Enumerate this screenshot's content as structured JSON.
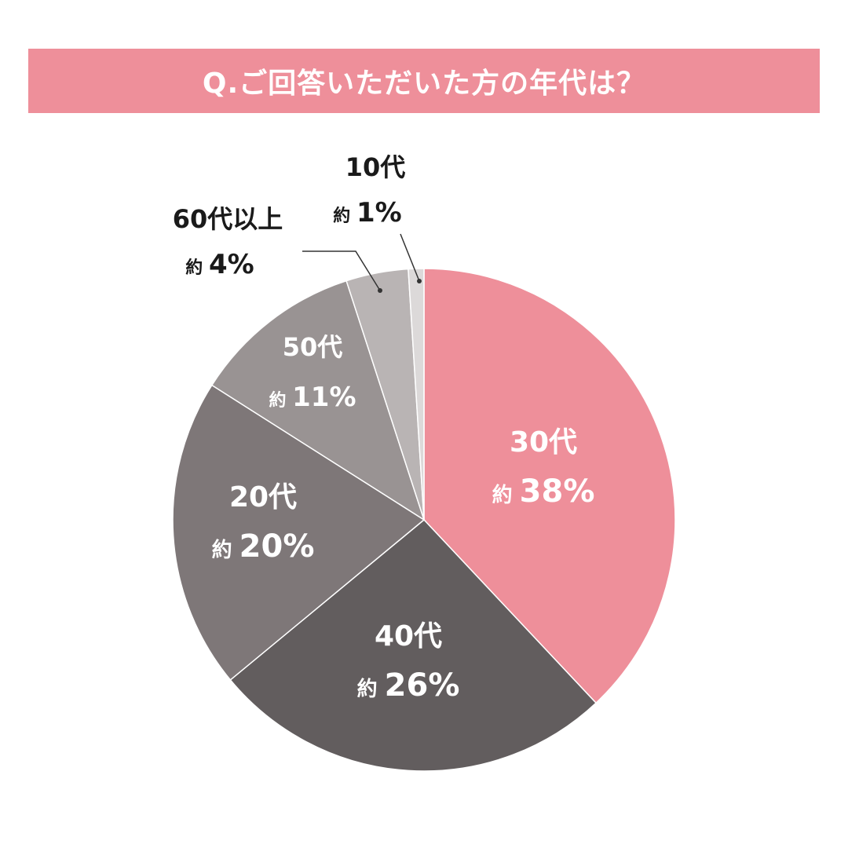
{
  "title": "Q.ご回答いただいた方の年代は？",
  "chart_data": {
    "type": "pie",
    "title": "Q.ご回答いただいた方の年代は？",
    "approx_prefix": "約",
    "slices": [
      {
        "label": "30代",
        "value": 38,
        "value_text": "38%",
        "color": "#ee8f9a",
        "text_color": "#ffffff"
      },
      {
        "label": "40代",
        "value": 26,
        "value_text": "26%",
        "color": "#625d5e",
        "text_color": "#ffffff"
      },
      {
        "label": "20代",
        "value": 20,
        "value_text": "20%",
        "color": "#7e7778",
        "text_color": "#ffffff"
      },
      {
        "label": "50代",
        "value": 11,
        "value_text": "11%",
        "color": "#999393",
        "text_color": "#ffffff"
      },
      {
        "label": "60代以上",
        "value": 4,
        "value_text": "4%",
        "color": "#b9b4b4",
        "text_color": "#1a1a1a"
      },
      {
        "label": "10代",
        "value": 1,
        "value_text": "1%",
        "color": "#dcd9d9",
        "text_color": "#1a1a1a"
      }
    ]
  }
}
